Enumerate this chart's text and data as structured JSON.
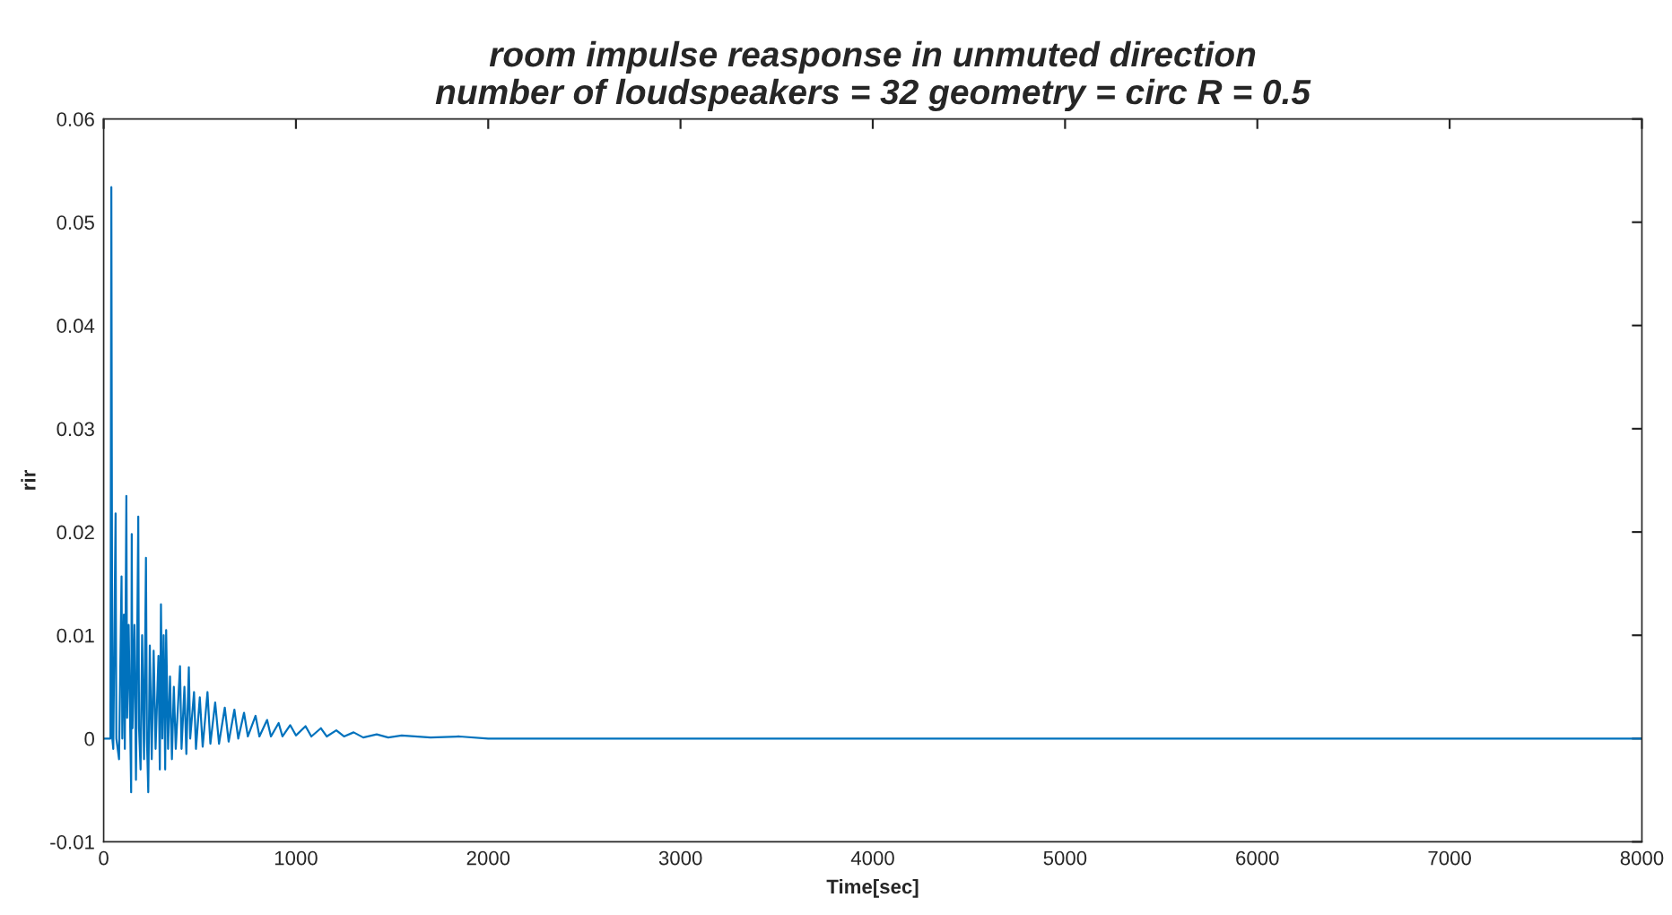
{
  "chart_data": {
    "type": "line",
    "title": "room impulse reasponse in unmuted direction\nnumber of loudspeakers = 32 geometry = circ R = 0.5",
    "xlabel": "Time[sec]",
    "ylabel": "rir",
    "x": [
      0,
      35,
      40,
      45,
      50,
      62,
      66,
      80,
      93,
      97,
      105,
      110,
      118,
      122,
      130,
      143,
      146,
      150,
      160,
      168,
      180,
      184,
      192,
      200,
      210,
      220,
      225,
      232,
      240,
      250,
      260,
      270,
      285,
      292,
      298,
      305,
      312,
      320,
      325,
      335,
      345,
      355,
      365,
      375,
      397,
      405,
      420,
      430,
      443,
      450,
      470,
      480,
      500,
      515,
      540,
      555,
      580,
      600,
      630,
      650,
      680,
      700,
      730,
      750,
      790,
      810,
      850,
      870,
      910,
      930,
      970,
      1000,
      1050,
      1080,
      1130,
      1160,
      1210,
      1250,
      1300,
      1350,
      1420,
      1480,
      1550,
      1700,
      1850,
      2000,
      3000,
      4000,
      5000,
      6000,
      7000,
      8000
    ],
    "series": [
      {
        "color": "#0072bd",
        "values": [
          0,
          0,
          0.0534,
          0,
          -0.001,
          0.0218,
          0,
          -0.002,
          0.0157,
          0,
          0.012,
          -0.001,
          0.0235,
          0.002,
          0.011,
          -0.0052,
          0.0198,
          0.001,
          0.011,
          -0.004,
          0.0215,
          0.001,
          -0.003,
          0.01,
          -0.002,
          0.0175,
          0,
          -0.0052,
          0.009,
          -0.002,
          0.0085,
          -0.001,
          0.008,
          -0.003,
          0.013,
          0,
          0.01,
          -0.003,
          0.0105,
          -0.001,
          0.006,
          -0.002,
          0.005,
          -0.001,
          0.007,
          -0.001,
          0.005,
          -0.0015,
          0.0069,
          0,
          0.0045,
          -0.001,
          0.004,
          -0.0008,
          0.0045,
          -0.0005,
          0.0035,
          -0.0005,
          0.003,
          -0.0003,
          0.0028,
          0,
          0.0025,
          0.0002,
          0.0022,
          0.0002,
          0.0018,
          0.0002,
          0.0015,
          0.0002,
          0.0013,
          0.0003,
          0.0012,
          0.0002,
          0.001,
          0.0002,
          0.0008,
          0.0002,
          0.0006,
          0.0001,
          0.0004,
          0.0001,
          0.0003,
          0.0001,
          0.0002,
          0,
          0,
          0,
          0,
          0,
          0,
          0
        ]
      }
    ],
    "xlim": [
      0,
      8000
    ],
    "xticks": [
      0,
      1000,
      2000,
      3000,
      4000,
      5000,
      6000,
      7000,
      8000
    ],
    "ylim": [
      -0.01,
      0.06
    ],
    "yticks": [
      -0.01,
      0,
      0.01,
      0.02,
      0.03,
      0.04,
      0.05,
      0.06
    ],
    "grid": false,
    "marker": "none",
    "line_style": "solid"
  }
}
